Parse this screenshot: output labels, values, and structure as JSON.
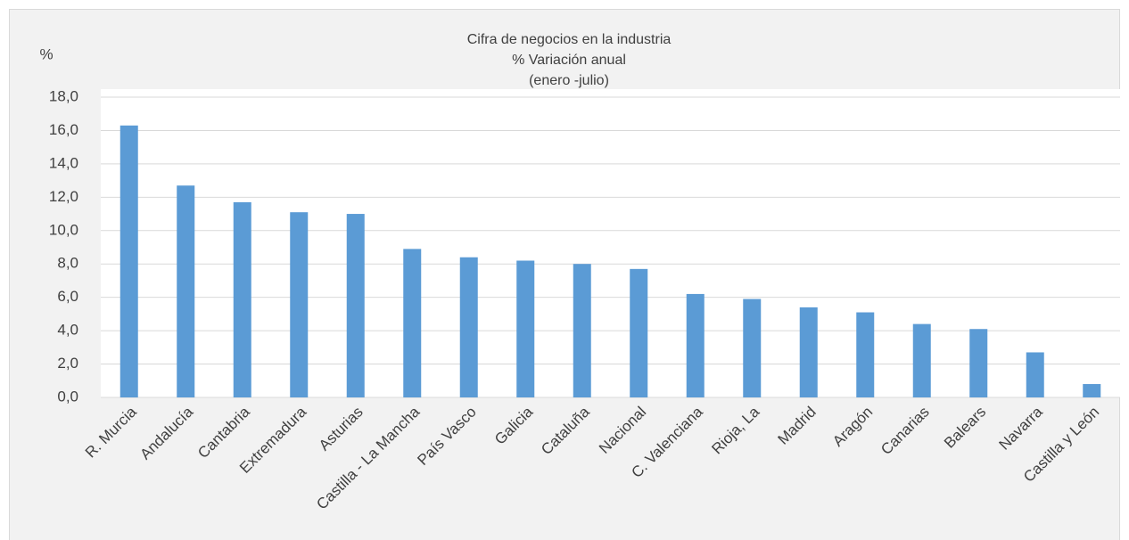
{
  "chart_data": {
    "type": "bar",
    "title": [
      "Cifra de negocios en la industria",
      "% Variación anual",
      "(enero -julio)"
    ],
    "y_label": "%",
    "categories": [
      "R. Murcia",
      "Andalucía",
      "Cantabria",
      "Extremadura",
      "Asturias",
      "Castilla - La Mancha",
      "País Vasco",
      "Galicia",
      "Cataluña",
      "Nacional",
      "C. Valenciana",
      "Rioja, La",
      "Madrid",
      "Aragón",
      "Canarias",
      "Balears",
      "Navarra",
      "Castilla y León"
    ],
    "values": [
      16.3,
      12.7,
      11.7,
      11.1,
      11.0,
      8.9,
      8.4,
      8.2,
      8.0,
      7.7,
      6.2,
      5.9,
      5.4,
      5.1,
      4.4,
      4.1,
      2.7,
      0.8
    ],
    "color": "#5b9bd5",
    "ylim": [
      0,
      18
    ],
    "yticks": [
      {
        "value": 0,
        "label": "0,0"
      },
      {
        "value": 2,
        "label": "2,0"
      },
      {
        "value": 4,
        "label": "4,0"
      },
      {
        "value": 6,
        "label": "6,0"
      },
      {
        "value": 8,
        "label": "8,0"
      },
      {
        "value": 10,
        "label": "10,0"
      },
      {
        "value": 12,
        "label": "12,0"
      },
      {
        "value": 14,
        "label": "14,0"
      },
      {
        "value": 16,
        "label": "16,0"
      },
      {
        "value": 18,
        "label": "18,0"
      }
    ],
    "grid": true
  }
}
